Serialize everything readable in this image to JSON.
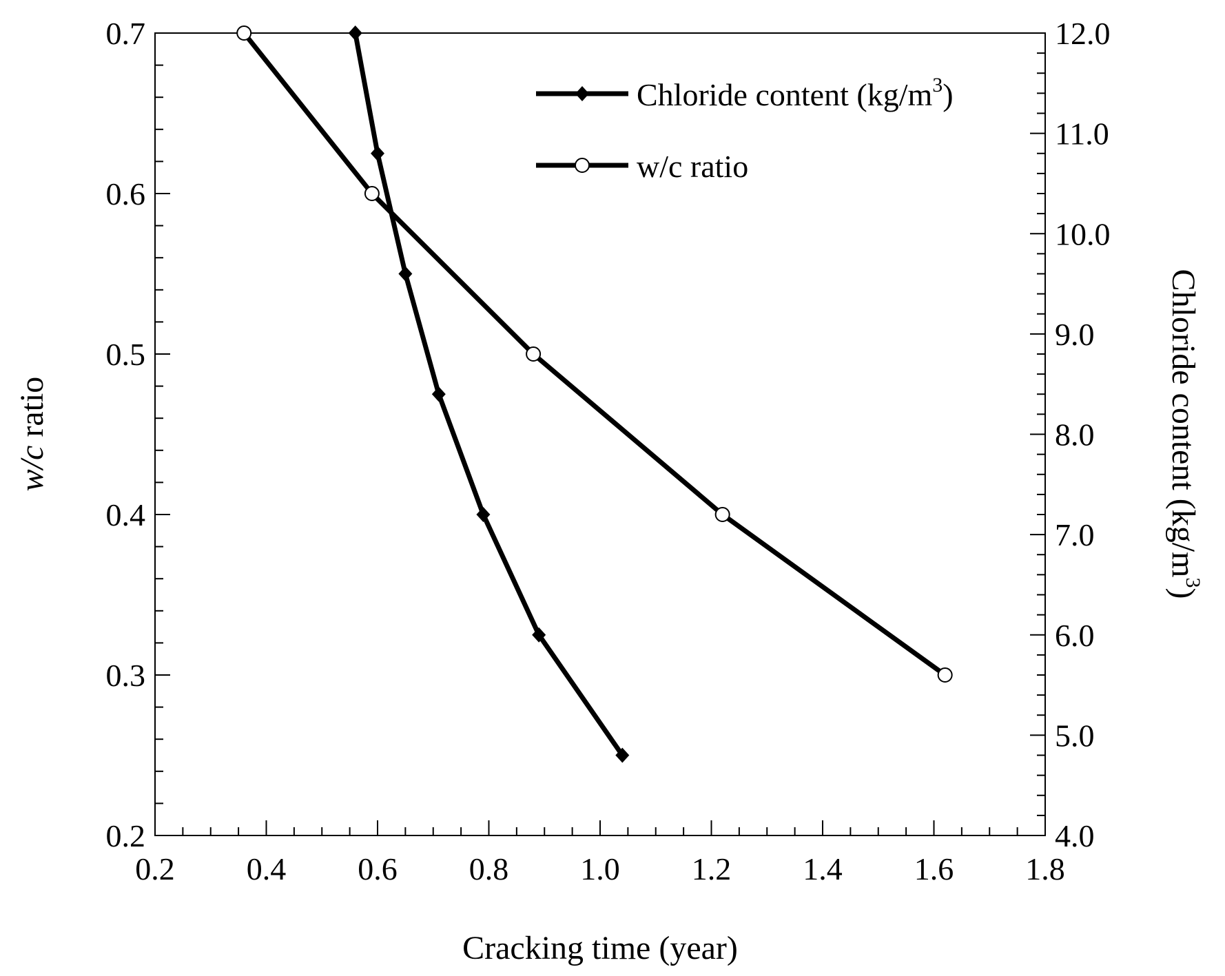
{
  "colors": {
    "line": "#000000",
    "background": "#ffffff",
    "marker_fill_open": "#ffffff"
  },
  "chart_data": {
    "type": "line",
    "title": "",
    "xlabel": "Cracking time (year)",
    "ylabel_left_prefix": "w/c",
    "ylabel_left_suffix": " ratio",
    "ylabel_right": "Chloride content (kg/m",
    "ylabel_right_sup": "3",
    "ylabel_right_close": ")",
    "xlim": [
      0.2,
      1.8
    ],
    "ylim_left": [
      0.2,
      0.7
    ],
    "ylim_right": [
      4.0,
      12.0
    ],
    "x_ticks": [
      "0.2",
      "0.4",
      "0.6",
      "0.8",
      "1.0",
      "1.2",
      "1.4",
      "1.6",
      "1.8"
    ],
    "y_left_ticks": [
      "0.2",
      "0.3",
      "0.4",
      "0.5",
      "0.6",
      "0.7"
    ],
    "y_right_ticks": [
      "4.0",
      "5.0",
      "6.0",
      "7.0",
      "8.0",
      "9.0",
      "10.0",
      "11.0",
      "12.0"
    ],
    "grid": false,
    "legend_position": "top-right",
    "series": [
      {
        "name": "Chloride content (kg/m",
        "name_sup": "3",
        "name_close": ")",
        "axis": "right",
        "marker": "diamond",
        "x": [
          0.56,
          0.6,
          0.65,
          0.71,
          0.79,
          0.89,
          1.04
        ],
        "y": [
          12.0,
          10.8,
          9.6,
          8.4,
          7.2,
          6.0,
          4.8
        ]
      },
      {
        "name": "w/c ratio",
        "axis": "left",
        "marker": "circle-open",
        "x": [
          0.36,
          0.59,
          0.88,
          1.22,
          1.62
        ],
        "y": [
          0.7,
          0.6,
          0.5,
          0.4,
          0.3
        ]
      }
    ]
  }
}
